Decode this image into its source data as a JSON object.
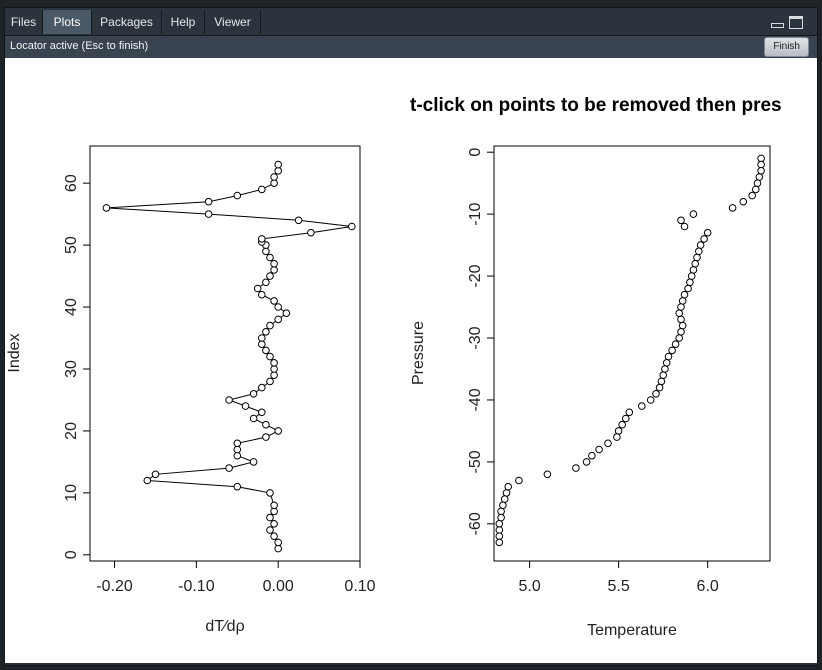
{
  "tabs": [
    {
      "label": "Files",
      "active": false
    },
    {
      "label": "Plots",
      "active": true
    },
    {
      "label": "Packages",
      "active": false
    },
    {
      "label": "Help",
      "active": false
    },
    {
      "label": "Viewer",
      "active": false
    }
  ],
  "window_controls": {
    "minimize_icon": "minimize-icon",
    "maximize_icon": "maximize-icon"
  },
  "toolbar": {
    "status": "Locator active (Esc to finish)",
    "finish_label": "Finish"
  },
  "plot_title": "t-click on points to be removed then pres",
  "chart_data": [
    {
      "type": "line",
      "xlabel": "dT∕dρ",
      "ylabel": "Index",
      "xlim": [
        -0.23,
        0.1
      ],
      "ylim": [
        -1,
        66
      ],
      "x_ticks": [
        -0.2,
        -0.1,
        0.0,
        0.1
      ],
      "x_tick_labels": [
        "-0.20",
        "-0.10",
        "0.00",
        "0.10"
      ],
      "y_ticks": [
        0,
        10,
        20,
        30,
        40,
        50,
        60
      ],
      "y_tick_labels": [
        "0",
        "10",
        "20",
        "30",
        "40",
        "50",
        "60"
      ],
      "markers": "open-circle",
      "series": [
        {
          "x": [
            0.0,
            0.0,
            -0.005,
            -0.01,
            -0.005,
            -0.01,
            -0.005,
            -0.005,
            -0.01,
            -0.05,
            -0.16,
            -0.15,
            -0.06,
            -0.03,
            -0.05,
            -0.05,
            -0.05,
            -0.015,
            0.0,
            -0.015,
            -0.03,
            -0.02,
            -0.04,
            -0.06,
            -0.03,
            -0.02,
            -0.01,
            -0.005,
            -0.005,
            -0.005,
            -0.01,
            -0.015,
            -0.02,
            -0.02,
            -0.015,
            -0.01,
            0.0,
            0.01,
            0.0,
            -0.005,
            -0.02,
            -0.025,
            -0.015,
            -0.01,
            -0.005,
            -0.005,
            -0.01,
            -0.015,
            -0.015,
            -0.02,
            -0.02,
            0.04,
            0.09,
            0.025,
            -0.085,
            -0.21,
            -0.085,
            -0.05,
            -0.02,
            -0.005,
            -0.005,
            0.0,
            0.0
          ],
          "y": [
            1,
            2,
            3,
            4,
            5,
            6,
            7,
            8,
            10,
            11,
            12,
            13,
            14,
            15,
            16,
            17,
            18,
            19,
            20,
            21,
            22,
            23,
            24,
            25,
            26,
            27,
            28,
            29,
            30,
            31,
            32,
            33,
            34,
            35,
            36,
            37,
            38,
            39,
            40,
            41,
            42,
            43,
            44,
            45,
            46,
            47,
            48,
            49,
            50,
            50.5,
            51,
            52,
            53,
            54,
            55,
            56,
            57,
            58,
            59,
            60,
            61,
            62,
            63
          ]
        }
      ]
    },
    {
      "type": "scatter",
      "xlabel": "Temperature",
      "ylabel": "Pressure",
      "xlim": [
        4.8,
        6.35
      ],
      "ylim": [
        -66,
        1
      ],
      "x_ticks": [
        5.0,
        5.5,
        6.0
      ],
      "x_tick_labels": [
        "5.0",
        "5.5",
        "6.0"
      ],
      "y_ticks": [
        0,
        -10,
        -20,
        -30,
        -40,
        -50,
        -60
      ],
      "y_tick_labels": [
        "0",
        "-10",
        "-20",
        "-30",
        "-40",
        "-50",
        "-60"
      ],
      "markers": "open-circle",
      "series": [
        {
          "x": [
            6.3,
            6.3,
            6.3,
            6.29,
            6.28,
            6.27,
            6.25,
            6.2,
            6.14,
            5.92,
            5.85,
            5.87,
            6.0,
            5.98,
            5.96,
            5.95,
            5.94,
            5.93,
            5.92,
            5.91,
            5.9,
            5.89,
            5.87,
            5.86,
            5.85,
            5.84,
            5.85,
            5.86,
            5.85,
            5.84,
            5.82,
            5.8,
            5.78,
            5.77,
            5.76,
            5.75,
            5.74,
            5.73,
            5.71,
            5.68,
            5.63,
            5.56,
            5.54,
            5.52,
            5.5,
            5.49,
            5.44,
            5.39,
            5.35,
            5.32,
            5.26,
            5.1,
            4.94,
            4.88,
            4.87,
            4.86,
            4.85,
            4.84,
            4.84,
            4.83,
            4.83,
            4.83,
            4.83
          ],
          "y": [
            -1,
            -2,
            -3,
            -4,
            -5,
            -6,
            -7,
            -8,
            -9,
            -10,
            -11,
            -12,
            -13,
            -14,
            -15,
            -16,
            -17,
            -18,
            -19,
            -20,
            -21,
            -22,
            -23,
            -24,
            -25,
            -26,
            -27,
            -28,
            -29,
            -30,
            -31,
            -32,
            -33,
            -34,
            -35,
            -36,
            -37,
            -38,
            -39,
            -40,
            -41,
            -42,
            -43,
            -44,
            -45,
            -46,
            -47,
            -48,
            -49,
            -50,
            -51,
            -52,
            -53,
            -54,
            -55,
            -56,
            -57,
            -58,
            -59,
            -60,
            -61,
            -62,
            -63
          ]
        }
      ]
    }
  ]
}
